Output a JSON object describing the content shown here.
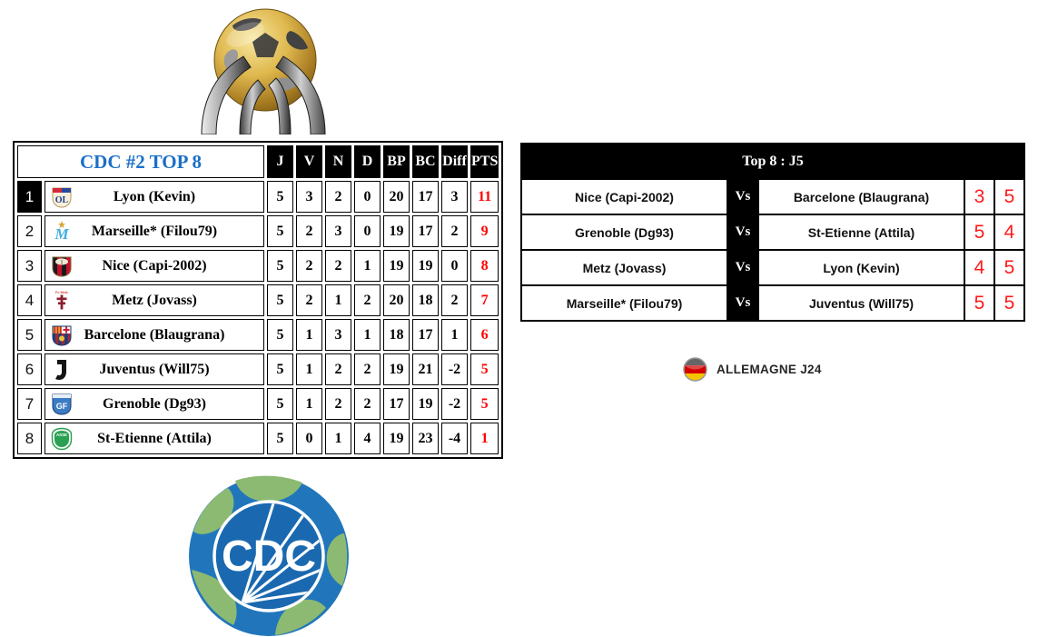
{
  "colors": {
    "title_blue": "#1b6fc8",
    "pts_red": "#ff0000",
    "score_red": "#ff1a1a",
    "header_black": "#000000"
  },
  "standings": {
    "title": "CDC #2 TOP 8",
    "columns": [
      "J",
      "V",
      "N",
      "D",
      "BP",
      "BC",
      "Diff",
      "PTS"
    ],
    "rows": [
      {
        "rank": "1",
        "team": "Lyon (Kevin)",
        "logo": "lyon",
        "leader": true,
        "stats": [
          "5",
          "3",
          "2",
          "0",
          "20",
          "17",
          "3"
        ],
        "pts": "11"
      },
      {
        "rank": "2",
        "team": "Marseille* (Filou79)",
        "logo": "marseille",
        "leader": false,
        "stats": [
          "5",
          "2",
          "3",
          "0",
          "19",
          "17",
          "2"
        ],
        "pts": "9"
      },
      {
        "rank": "3",
        "team": "Nice (Capi-2002)",
        "logo": "nice",
        "leader": false,
        "stats": [
          "5",
          "2",
          "2",
          "1",
          "19",
          "19",
          "0"
        ],
        "pts": "8"
      },
      {
        "rank": "4",
        "team": "Metz (Jovass)",
        "logo": "metz",
        "leader": false,
        "stats": [
          "5",
          "2",
          "1",
          "2",
          "20",
          "18",
          "2"
        ],
        "pts": "7"
      },
      {
        "rank": "5",
        "team": "Barcelone (Blaugrana)",
        "logo": "barcelone",
        "leader": false,
        "stats": [
          "5",
          "1",
          "3",
          "1",
          "18",
          "17",
          "1"
        ],
        "pts": "6"
      },
      {
        "rank": "6",
        "team": "Juventus (Will75)",
        "logo": "juventus",
        "leader": false,
        "stats": [
          "5",
          "1",
          "2",
          "2",
          "19",
          "21",
          "-2"
        ],
        "pts": "5"
      },
      {
        "rank": "7",
        "team": "Grenoble (Dg93)",
        "logo": "grenoble",
        "leader": false,
        "stats": [
          "5",
          "1",
          "2",
          "2",
          "17",
          "19",
          "-2"
        ],
        "pts": "5"
      },
      {
        "rank": "8",
        "team": "St-Etienne (Attila)",
        "logo": "st-etienne",
        "leader": false,
        "stats": [
          "5",
          "0",
          "1",
          "4",
          "19",
          "23",
          "-4"
        ],
        "pts": "1"
      }
    ]
  },
  "fixtures": {
    "title": "Top 8 : J5",
    "vs_label": "Vs",
    "matches": [
      {
        "home": "Nice (Capi-2002)",
        "away": "Barcelone (Blaugrana)",
        "home_score": "3",
        "away_score": "5"
      },
      {
        "home": "Grenoble (Dg93)",
        "away": "St-Etienne (Attila)",
        "home_score": "5",
        "away_score": "4"
      },
      {
        "home": "Metz (Jovass)",
        "away": "Lyon (Kevin)",
        "home_score": "4",
        "away_score": "5"
      },
      {
        "home": "Marseille* (Filou79)",
        "away": "Juventus (Will75)",
        "home_score": "5",
        "away_score": "5"
      }
    ]
  },
  "footer_badge": {
    "flag_icon": "germany-flag-icon",
    "label": "ALLEMAGNE J24"
  },
  "cdc_logo": {
    "text": "CDC"
  },
  "trophy": {
    "icon": "world-cup-trophy-icon"
  }
}
